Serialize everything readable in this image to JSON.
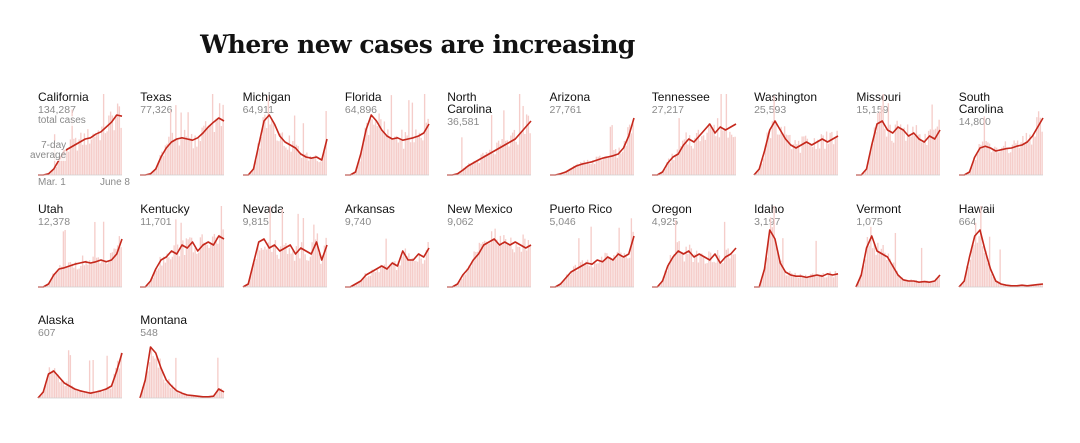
{
  "page_title": "Where new cases are increasing",
  "colors": {
    "line": "#c5281c",
    "bars": "#f5cdca",
    "faint_bar": "#f8dedc",
    "muted_text": "#8a8a8a"
  },
  "annotations": {
    "total_cases": "total cases",
    "average": "7-day\naverage",
    "start_date": "Mar. 1",
    "end_date": "June 8"
  },
  "chart_data": {
    "type": "area",
    "title": "Where new cases are increasing",
    "x_range": [
      "Mar. 1",
      "June 8"
    ],
    "value_meaning": "7-day average of new cases (normalized to each state's peak = 1.0)",
    "series": [
      {
        "name": "California",
        "total_cases": "134,287",
        "avg": [
          0,
          0,
          0.02,
          0.1,
          0.25,
          0.4,
          0.45,
          0.5,
          0.55,
          0.6,
          0.62,
          0.68,
          0.72,
          0.8,
          0.88,
          1.0,
          0.98
        ]
      },
      {
        "name": "Texas",
        "total_cases": "77,326",
        "avg": [
          0,
          0,
          0.02,
          0.1,
          0.3,
          0.45,
          0.55,
          0.6,
          0.62,
          0.6,
          0.58,
          0.62,
          0.7,
          0.8,
          0.88,
          0.95,
          0.9
        ]
      },
      {
        "name": "Michigan",
        "total_cases": "64,911",
        "avg": [
          0,
          0,
          0.1,
          0.5,
          0.9,
          1.0,
          0.85,
          0.65,
          0.55,
          0.5,
          0.45,
          0.35,
          0.3,
          0.28,
          0.3,
          0.25,
          0.6
        ]
      },
      {
        "name": "Florida",
        "total_cases": "64,896",
        "avg": [
          0,
          0,
          0.05,
          0.35,
          0.75,
          1.0,
          0.9,
          0.75,
          0.65,
          0.6,
          0.62,
          0.58,
          0.6,
          0.62,
          0.65,
          0.7,
          0.85
        ]
      },
      {
        "name": "North Carolina",
        "total_cases": "36,581",
        "avg": [
          0,
          0,
          0.02,
          0.08,
          0.15,
          0.2,
          0.25,
          0.3,
          0.35,
          0.4,
          0.45,
          0.5,
          0.55,
          0.6,
          0.7,
          0.8,
          0.9
        ]
      },
      {
        "name": "Arizona",
        "total_cases": "27,761",
        "avg": [
          0,
          0,
          0.02,
          0.05,
          0.1,
          0.15,
          0.18,
          0.2,
          0.22,
          0.25,
          0.28,
          0.3,
          0.32,
          0.35,
          0.45,
          0.65,
          0.95
        ]
      },
      {
        "name": "Tennessee",
        "total_cases": "27,217",
        "avg": [
          0,
          0,
          0.05,
          0.2,
          0.3,
          0.35,
          0.5,
          0.6,
          0.55,
          0.65,
          0.75,
          0.85,
          0.7,
          0.8,
          0.75,
          0.8,
          0.85
        ]
      },
      {
        "name": "Washington",
        "total_cases": "25,593",
        "avg": [
          0,
          0.1,
          0.4,
          0.75,
          0.9,
          0.75,
          0.6,
          0.5,
          0.45,
          0.5,
          0.55,
          0.5,
          0.55,
          0.6,
          0.55,
          0.6,
          0.65
        ]
      },
      {
        "name": "Missouri",
        "total_cases": "15,159",
        "avg": [
          0,
          0,
          0.1,
          0.5,
          0.85,
          0.9,
          0.75,
          0.7,
          0.8,
          0.75,
          0.65,
          0.7,
          0.6,
          0.55,
          0.65,
          0.6,
          0.75
        ]
      },
      {
        "name": "South Carolina",
        "total_cases": "14,800",
        "avg": [
          0,
          0,
          0.05,
          0.3,
          0.45,
          0.48,
          0.45,
          0.4,
          0.42,
          0.44,
          0.45,
          0.48,
          0.5,
          0.55,
          0.65,
          0.8,
          0.95
        ]
      },
      {
        "name": "Utah",
        "total_cases": "12,378",
        "avg": [
          0,
          0,
          0.05,
          0.2,
          0.3,
          0.32,
          0.35,
          0.38,
          0.4,
          0.42,
          0.4,
          0.42,
          0.45,
          0.42,
          0.45,
          0.55,
          0.8
        ]
      },
      {
        "name": "Kentucky",
        "total_cases": "11,701",
        "avg": [
          0,
          0,
          0.1,
          0.3,
          0.45,
          0.5,
          0.6,
          0.55,
          0.7,
          0.65,
          0.75,
          0.6,
          0.7,
          0.75,
          0.7,
          0.85,
          0.8
        ]
      },
      {
        "name": "Nevada",
        "total_cases": "9,815",
        "avg": [
          0,
          0.05,
          0.4,
          0.75,
          0.8,
          0.65,
          0.7,
          0.6,
          0.65,
          0.7,
          0.55,
          0.65,
          0.6,
          0.55,
          0.75,
          0.45,
          0.7
        ]
      },
      {
        "name": "Arkansas",
        "total_cases": "9,740",
        "avg": [
          0,
          0,
          0.05,
          0.1,
          0.2,
          0.25,
          0.3,
          0.35,
          0.3,
          0.4,
          0.35,
          0.6,
          0.45,
          0.45,
          0.55,
          0.5,
          0.65
        ]
      },
      {
        "name": "New Mexico",
        "total_cases": "9,062",
        "avg": [
          0,
          0,
          0.05,
          0.2,
          0.3,
          0.45,
          0.55,
          0.7,
          0.75,
          0.8,
          0.7,
          0.75,
          0.7,
          0.75,
          0.7,
          0.65,
          0.7
        ]
      },
      {
        "name": "Puerto Rico",
        "total_cases": "5,046",
        "avg": [
          0,
          0,
          0.05,
          0.15,
          0.25,
          0.3,
          0.35,
          0.4,
          0.38,
          0.45,
          0.42,
          0.5,
          0.45,
          0.55,
          0.5,
          0.55,
          0.85
        ]
      },
      {
        "name": "Oregon",
        "total_cases": "4,925",
        "avg": [
          0,
          0,
          0.1,
          0.35,
          0.5,
          0.6,
          0.55,
          0.6,
          0.5,
          0.55,
          0.5,
          0.45,
          0.55,
          0.4,
          0.5,
          0.55,
          0.65
        ]
      },
      {
        "name": "Idaho",
        "total_cases": "3,197",
        "avg": [
          0,
          0,
          0.3,
          0.95,
          0.8,
          0.4,
          0.25,
          0.2,
          0.18,
          0.18,
          0.16,
          0.18,
          0.2,
          0.18,
          0.22,
          0.2,
          0.22
        ]
      },
      {
        "name": "Vermont",
        "total_cases": "1,075",
        "avg": [
          0,
          0.2,
          0.65,
          0.85,
          0.6,
          0.55,
          0.5,
          0.35,
          0.2,
          0.12,
          0.1,
          0.1,
          0.08,
          0.09,
          0.08,
          0.1,
          0.2
        ]
      },
      {
        "name": "Hawaii",
        "total_cases": "664",
        "avg": [
          0,
          0.1,
          0.5,
          0.85,
          0.95,
          0.6,
          0.3,
          0.1,
          0.05,
          0.03,
          0.02,
          0.02,
          0.03,
          0.02,
          0.03,
          0.04,
          0.05
        ]
      },
      {
        "name": "Alaska",
        "total_cases": "607",
        "avg": [
          0,
          0.1,
          0.4,
          0.45,
          0.35,
          0.25,
          0.2,
          0.15,
          0.12,
          0.1,
          0.08,
          0.1,
          0.12,
          0.15,
          0.2,
          0.45,
          0.75
        ]
      },
      {
        "name": "Montana",
        "total_cases": "548",
        "avg": [
          0,
          0.3,
          0.85,
          0.75,
          0.5,
          0.3,
          0.2,
          0.12,
          0.08,
          0.05,
          0.04,
          0.03,
          0.02,
          0.02,
          0.03,
          0.15,
          0.1
        ]
      }
    ]
  }
}
